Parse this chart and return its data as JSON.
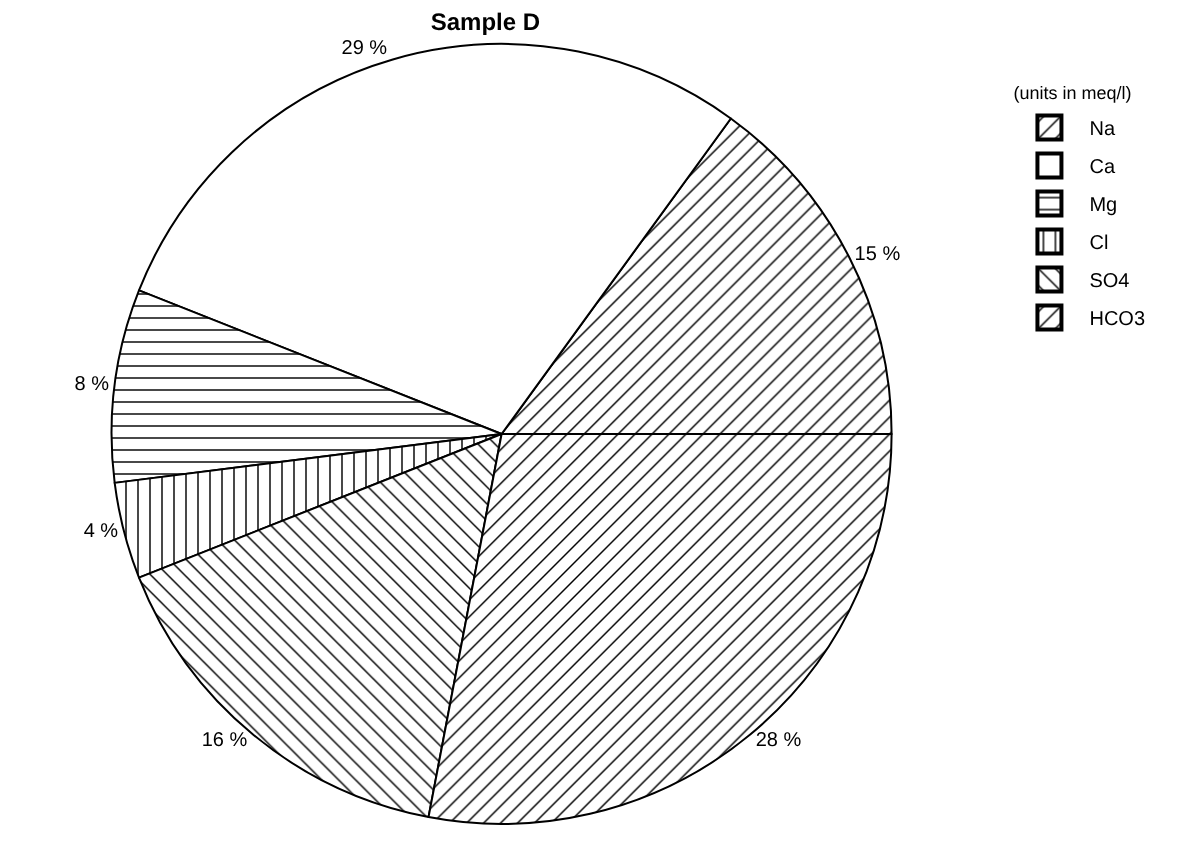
{
  "chart_data": {
    "type": "pie",
    "title": "Sample D",
    "legend_title": "(units in meq/l)",
    "legend": "right",
    "categories": [
      "Na",
      "Ca",
      "Mg",
      "Cl",
      "SO4",
      "HCO3"
    ],
    "values": [
      15,
      29,
      8,
      4,
      16,
      28
    ],
    "value_labels": [
      "15 %",
      "29 %",
      "8 %",
      "4 %",
      "16 %",
      "28 %"
    ],
    "colors": [
      "#000000",
      "#ffffff",
      "#000000",
      "#000000",
      "#000000",
      "#000000"
    ]
  }
}
